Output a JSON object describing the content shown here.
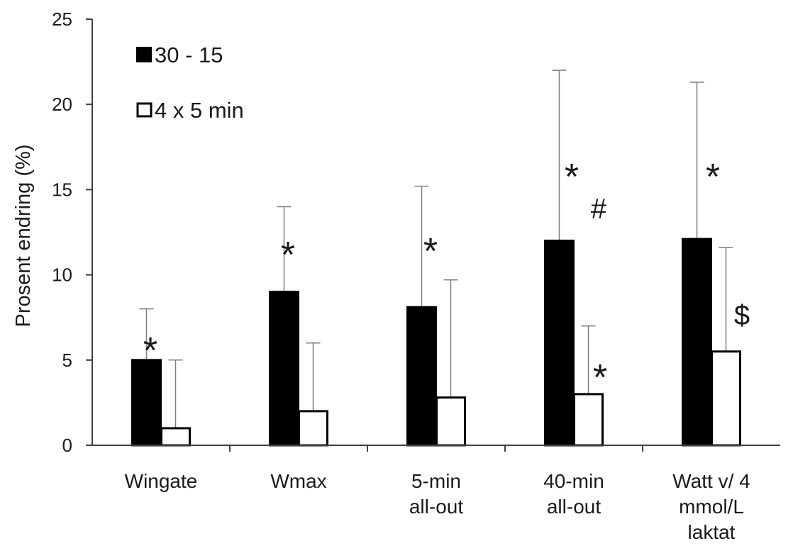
{
  "chart_data": {
    "type": "bar",
    "title": "",
    "xlabel": "",
    "ylabel": "Prosent endring (%)",
    "ylim": [
      0,
      25
    ],
    "yticks": [
      0,
      5,
      10,
      15,
      20,
      25
    ],
    "grid": false,
    "legend_position": "top-left",
    "categories": [
      [
        "Wingate"
      ],
      [
        "Wmax"
      ],
      [
        "5-min",
        "all-out"
      ],
      [
        "40-min",
        "all-out"
      ],
      [
        "Watt v/ 4",
        "mmol/L",
        "laktat"
      ]
    ],
    "series": [
      {
        "name": "30 - 15",
        "fill": "#000000",
        "values": [
          5.0,
          9.0,
          8.1,
          12.0,
          12.1
        ],
        "error_upper": [
          3.0,
          5.0,
          7.1,
          10.0,
          9.2
        ],
        "markers": [
          [
            "*"
          ],
          [
            "*"
          ],
          [
            "*"
          ],
          [
            "*",
            "#"
          ],
          [
            "*"
          ]
        ]
      },
      {
        "name": "4 x 5 min",
        "fill": "#ffffff",
        "values": [
          1.0,
          2.0,
          2.8,
          3.0,
          5.5
        ],
        "error_upper": [
          4.0,
          4.0,
          6.9,
          4.0,
          6.1
        ],
        "markers": [
          [
            "£"
          ],
          [
            "#"
          ],
          [],
          [
            "*"
          ],
          [
            "$"
          ]
        ]
      }
    ]
  }
}
